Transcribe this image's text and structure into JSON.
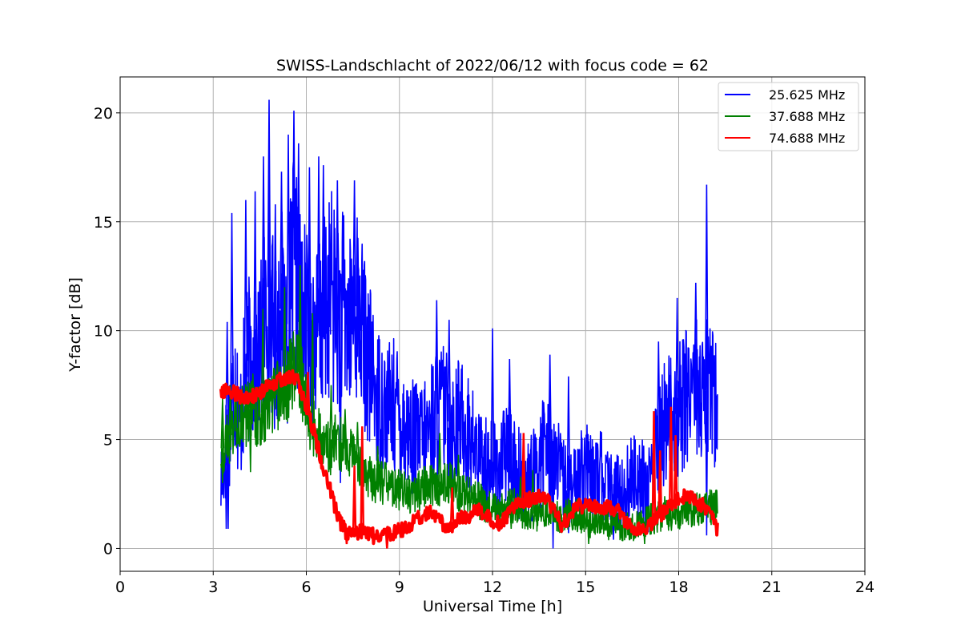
{
  "chart_data": {
    "type": "line",
    "title": "SWISS-Landschlacht of 2022/06/12 with focus code = 62",
    "xlabel": "Universal Time [h]",
    "ylabel": "Y-factor [dB]",
    "xlim": [
      0,
      24
    ],
    "ylim": [
      -1.05,
      21.65
    ],
    "xticks": [
      0,
      3,
      6,
      9,
      12,
      15,
      18,
      21,
      24
    ],
    "yticks": [
      0,
      5,
      10,
      15,
      20
    ],
    "grid": true,
    "legend_position": "top-right",
    "series": [
      {
        "name": "25.625 MHz",
        "color": "#0000ff",
        "x": [
          3.25,
          3.4,
          3.55,
          3.7,
          3.85,
          4.0,
          4.2,
          4.4,
          4.6,
          4.8,
          5.0,
          5.2,
          5.4,
          5.6,
          5.8,
          6.0,
          6.2,
          6.4,
          6.6,
          6.8,
          7.0,
          7.2,
          7.4,
          7.6,
          7.8,
          8.0,
          8.3,
          8.6,
          8.9,
          9.2,
          9.5,
          9.8,
          10.1,
          10.4,
          10.7,
          11.0,
          11.3,
          11.6,
          11.9,
          12.2,
          12.5,
          12.8,
          13.1,
          13.4,
          13.7,
          14.0,
          14.3,
          14.6,
          14.9,
          15.2,
          15.5,
          15.8,
          16.1,
          16.4,
          16.7,
          17.0,
          17.3,
          17.6,
          17.9,
          18.2,
          18.5,
          18.8,
          19.0,
          19.25
        ],
        "y": [
          3.0,
          4.5,
          6.0,
          8.0,
          5.5,
          7.5,
          9.0,
          8.0,
          10.0,
          12.0,
          9.0,
          11.0,
          10.0,
          13.0,
          11.0,
          10.5,
          9.5,
          10.0,
          11.0,
          12.0,
          10.5,
          11.0,
          10.0,
          11.5,
          10.0,
          8.5,
          7.0,
          6.5,
          6.5,
          5.5,
          5.0,
          5.0,
          6.0,
          6.5,
          5.5,
          6.0,
          5.0,
          4.0,
          4.0,
          3.5,
          4.5,
          3.5,
          3.0,
          3.5,
          5.0,
          4.0,
          3.0,
          2.5,
          4.0,
          3.0,
          3.5,
          2.5,
          2.5,
          3.0,
          3.5,
          2.5,
          4.5,
          6.0,
          6.0,
          7.0,
          8.0,
          6.5,
          8.0,
          6.0
        ],
        "peaks_x": [
          3.45,
          3.6,
          4.05,
          4.35,
          4.62,
          4.8,
          5.0,
          5.2,
          5.42,
          5.6,
          5.75,
          6.1,
          6.4,
          6.55,
          7.0,
          7.55,
          7.8,
          10.2,
          10.6,
          12.0,
          12.55,
          13.85,
          14.45,
          17.35,
          17.95,
          18.55,
          18.9
        ],
        "peaks_y": [
          10.4,
          15.4,
          16.0,
          16.4,
          18.0,
          20.6,
          15.8,
          17.3,
          19.0,
          20.1,
          18.6,
          17.5,
          18.0,
          17.6,
          16.9,
          16.9,
          12.6,
          11.4,
          10.5,
          10.1,
          8.7,
          8.9,
          7.9,
          9.5,
          11.5,
          12.2,
          16.7
        ],
        "dips_x": [
          3.42,
          3.48,
          7.1,
          13.95,
          14.45,
          15.9,
          18.9
        ],
        "dips_y": [
          0.9,
          0.9,
          3.0,
          0.0,
          0.7,
          0.4,
          0.6
        ]
      },
      {
        "name": "37.688 MHz",
        "color": "#008000",
        "x": [
          3.25,
          3.5,
          3.75,
          4.0,
          4.25,
          4.5,
          4.75,
          5.0,
          5.25,
          5.5,
          5.75,
          6.0,
          6.25,
          6.5,
          6.75,
          7.0,
          7.3,
          7.6,
          7.9,
          8.2,
          8.5,
          8.8,
          9.1,
          9.4,
          9.7,
          10.0,
          10.3,
          10.6,
          10.9,
          11.2,
          11.5,
          11.8,
          12.1,
          12.4,
          12.7,
          13.0,
          13.3,
          13.6,
          13.9,
          14.2,
          14.5,
          14.8,
          15.1,
          15.4,
          15.7,
          16.0,
          16.3,
          16.6,
          16.9,
          17.2,
          17.5,
          17.8,
          18.1,
          18.4,
          18.7,
          19.0,
          19.25
        ],
        "y": [
          4.5,
          5.0,
          6.0,
          6.0,
          6.5,
          6.0,
          6.5,
          7.0,
          7.0,
          8.0,
          8.5,
          6.5,
          5.5,
          5.0,
          4.5,
          5.0,
          4.5,
          4.0,
          3.5,
          3.0,
          3.0,
          2.8,
          2.6,
          2.5,
          2.7,
          3.0,
          2.8,
          3.0,
          2.6,
          2.4,
          2.2,
          2.0,
          1.8,
          1.8,
          2.0,
          1.7,
          1.6,
          1.5,
          1.5,
          1.4,
          1.6,
          1.5,
          1.2,
          1.2,
          1.1,
          1.0,
          1.0,
          1.0,
          1.2,
          1.4,
          1.6,
          1.6,
          1.7,
          1.8,
          1.8,
          1.9,
          2.0
        ],
        "peaks_x": [
          3.3,
          3.55,
          4.6,
          5.3,
          5.8,
          6.2,
          6.8,
          7.25,
          7.65,
          8.3,
          10.3,
          10.9,
          12.9,
          13.3
        ],
        "peaks_y": [
          6.9,
          7.5,
          11.0,
          12.0,
          13.0,
          10.8,
          7.5,
          6.4,
          5.8,
          4.7,
          5.3,
          4.3,
          3.3,
          3.6
        ],
        "dips_x": [
          3.3,
          4.2,
          12.6,
          15.1,
          16.9
        ],
        "dips_y": [
          3.0,
          3.5,
          0.9,
          0.2,
          0.2
        ]
      },
      {
        "name": "74.688 MHz",
        "color": "#ff0000",
        "x": [
          3.25,
          3.5,
          3.75,
          4.0,
          4.25,
          4.5,
          4.75,
          5.0,
          5.25,
          5.5,
          5.75,
          6.0,
          6.25,
          6.5,
          6.75,
          7.0,
          7.25,
          7.5,
          7.75,
          8.0,
          8.25,
          8.5,
          8.75,
          9.0,
          9.25,
          9.5,
          9.75,
          10.0,
          10.25,
          10.5,
          10.75,
          11.0,
          11.25,
          11.5,
          11.75,
          12.0,
          12.25,
          12.5,
          12.75,
          13.0,
          13.25,
          13.5,
          13.75,
          14.0,
          14.25,
          14.5,
          14.75,
          15.0,
          15.25,
          15.5,
          15.75,
          16.0,
          16.25,
          16.5,
          16.75,
          17.0,
          17.25,
          17.5,
          17.75,
          18.0,
          18.25,
          18.5,
          18.75,
          19.0,
          19.25
        ],
        "y": [
          7.3,
          7.2,
          7.1,
          6.9,
          7.0,
          7.2,
          7.4,
          7.6,
          7.8,
          7.9,
          7.6,
          6.5,
          5.3,
          4.0,
          2.8,
          1.5,
          0.8,
          0.6,
          0.8,
          0.7,
          0.5,
          0.6,
          0.7,
          0.8,
          1.0,
          1.3,
          1.5,
          1.7,
          1.3,
          1.0,
          1.1,
          1.4,
          1.5,
          1.8,
          1.6,
          1.3,
          1.1,
          1.6,
          2.0,
          2.1,
          2.3,
          2.4,
          2.2,
          1.8,
          1.0,
          1.6,
          2.0,
          1.9,
          2.0,
          1.8,
          1.9,
          1.8,
          1.3,
          1.0,
          0.9,
          1.0,
          1.3,
          1.7,
          2.0,
          2.3,
          2.4,
          2.2,
          2.0,
          1.5,
          0.9
        ],
        "peaks_x": [
          6.05,
          7.55,
          7.8,
          10.7,
          13.0,
          17.2,
          17.4,
          17.75,
          17.9
        ],
        "peaks_y": [
          8.1,
          3.8,
          5.6,
          2.8,
          5.3,
          6.3,
          4.5,
          6.5,
          5.2
        ],
        "dips_x": [
          7.3,
          8.6,
          16.7
        ],
        "dips_y": [
          0.2,
          0.0,
          0.6
        ]
      }
    ]
  }
}
